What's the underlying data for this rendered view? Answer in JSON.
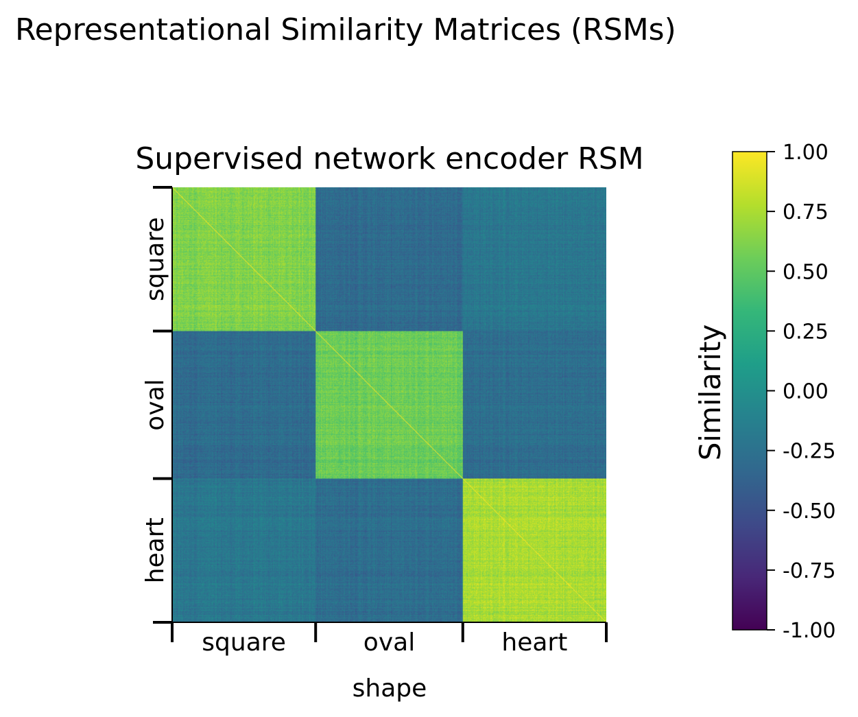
{
  "figure": {
    "suptitle": "Representational Similarity Matrices (RSMs)"
  },
  "chart_data": {
    "type": "heatmap",
    "title": "Supervised network encoder RSM",
    "xlabel": "shape",
    "ylabel": "",
    "groups": [
      "square",
      "oval",
      "heart"
    ],
    "group_sizes": [
      195,
      200,
      195
    ],
    "block_mean_similarity": [
      [
        0.62,
        -0.3,
        -0.2
      ],
      [
        -0.3,
        0.55,
        -0.28
      ],
      [
        -0.2,
        -0.28,
        0.75
      ]
    ],
    "diagonal_value": 1.0,
    "colorbar": {
      "label": "Similarity",
      "colormap": "viridis",
      "vmin": -1.0,
      "vmax": 1.0,
      "ticks": [
        "1.00",
        "0.75",
        "0.50",
        "0.25",
        "0.00",
        "-0.25",
        "-0.50",
        "-0.75",
        "-1.00"
      ]
    }
  }
}
